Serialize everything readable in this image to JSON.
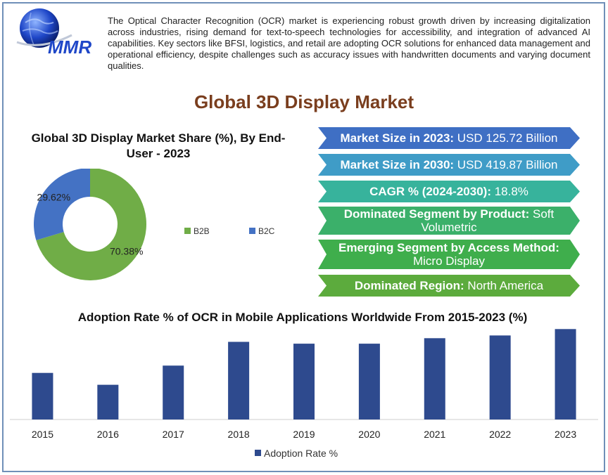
{
  "intro_text": "The Optical Character Recognition (OCR) market is experiencing robust growth driven by increasing digitalization across industries, rising demand for text-to-speech technologies for accessibility, and integration of advanced AI capabilities. Key sectors like BFSI, logistics, and retail are adopting OCR solutions for enhanced data management and operational efficiency, despite challenges such as accuracy issues with handwritten documents and varying document qualities.",
  "logo_text": "MMR",
  "main_title": "Global 3D Display Market",
  "stats": [
    {
      "label": "Market Size in 2023:",
      "value": " USD 125.72 Billion",
      "color": "#3f6fc4"
    },
    {
      "label": "Market Size in 2030:",
      "value": " USD 419.87 Billion",
      "color": "#3f9cc7"
    },
    {
      "label": "CAGR % (2024-2030):",
      "value": " 18.8%",
      "color": "#37b39c"
    },
    {
      "label": "Dominated Segment by Product:",
      "value": " Soft Volumetric",
      "color": "#3bb06a"
    },
    {
      "label": "Emerging Segment by Access Method:",
      "value": " Micro Display",
      "color": "#3fae4c"
    },
    {
      "label": "Dominated Region:",
      "value": " North America",
      "color": "#5cab3d"
    }
  ],
  "chart_data": [
    {
      "type": "pie",
      "title": "Global 3D Display Market Share (%), By End-User - 2023",
      "categories": [
        "B2B",
        "B2C"
      ],
      "values": [
        70.38,
        29.62
      ],
      "data_labels": [
        "70.38%",
        "29.62%"
      ],
      "colors": [
        "#70ad47",
        "#4472c4"
      ],
      "donut": true,
      "legend": "right"
    },
    {
      "type": "bar",
      "title": "Adoption Rate % of OCR in Mobile Applications Worldwide From 2015-2023 (%)",
      "categories": [
        "2015",
        "2016",
        "2017",
        "2018",
        "2019",
        "2020",
        "2021",
        "2022",
        "2023"
      ],
      "series": [
        {
          "name": "Adoption Rate %",
          "values": [
            51,
            38,
            59,
            85,
            83,
            83,
            89,
            92,
            99
          ]
        }
      ],
      "ylim": [
        0,
        100
      ],
      "color": "#2e4a8e",
      "grid": false,
      "legend": "bottom"
    }
  ]
}
